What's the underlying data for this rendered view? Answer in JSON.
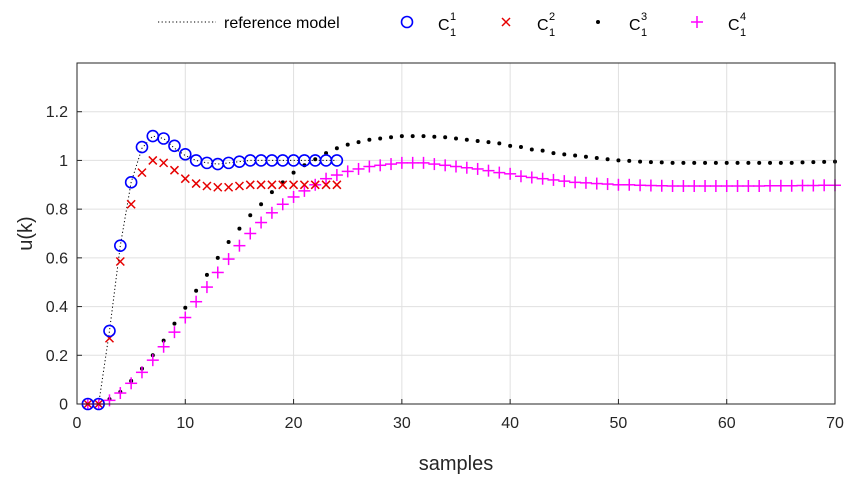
{
  "chart_data": {
    "type": "scatter",
    "xlabel": "samples",
    "ylabel": "u(k)",
    "xlim": [
      0,
      70
    ],
    "ylim": [
      0,
      1.4
    ],
    "xticks": [
      0,
      10,
      20,
      30,
      40,
      50,
      60,
      70
    ],
    "yticks": [
      0,
      0.2,
      0.4,
      0.6,
      0.8,
      1,
      1.2
    ],
    "ytick_labels": [
      "0",
      "0.2",
      "0.4",
      "0.6",
      "0.8",
      "1",
      "1.2"
    ],
    "grid": true,
    "legend_position": "top-outside",
    "legend": [
      {
        "key": "ref",
        "label": "reference model",
        "marker": "dotted-line",
        "color": "#000000"
      },
      {
        "key": "c1",
        "base": "C",
        "sup": "1",
        "sub": "1",
        "marker": "circle",
        "color": "#0000ff"
      },
      {
        "key": "c2",
        "base": "C",
        "sup": "2",
        "sub": "1",
        "marker": "x",
        "color": "#e60000"
      },
      {
        "key": "c3",
        "base": "C",
        "sup": "3",
        "sub": "1",
        "marker": "dot",
        "color": "#000000"
      },
      {
        "key": "c4",
        "base": "C",
        "sup": "4",
        "sub": "1",
        "marker": "plus",
        "color": "#ff00ff"
      }
    ],
    "series": [
      {
        "key": "ref",
        "x": [
          1,
          2,
          3,
          4,
          5,
          6,
          7,
          8,
          9,
          10,
          11,
          12,
          13,
          14,
          15,
          16,
          17,
          18,
          19,
          20,
          21,
          22,
          23,
          24
        ],
        "y": [
          0,
          0,
          0.3,
          0.65,
          0.91,
          1.05,
          1.1,
          1.09,
          1.05,
          1.02,
          1.0,
          0.99,
          0.985,
          0.99,
          0.995,
          1.0,
          1.0,
          1.0,
          1.0,
          1.0,
          1.0,
          1.0,
          1.0,
          1.0
        ]
      },
      {
        "key": "c1",
        "x": [
          1,
          2,
          3,
          4,
          5,
          6,
          7,
          8,
          9,
          10,
          11,
          12,
          13,
          14,
          15,
          16,
          17,
          18,
          19,
          20,
          21,
          22,
          23,
          24
        ],
        "y": [
          0,
          0,
          0.3,
          0.65,
          0.91,
          1.055,
          1.1,
          1.09,
          1.06,
          1.025,
          1.0,
          0.99,
          0.985,
          0.99,
          0.995,
          1.0,
          1.0,
          1.0,
          1.0,
          1.0,
          1.0,
          1.0,
          1.0,
          1.0
        ]
      },
      {
        "key": "c2",
        "x": [
          1,
          2,
          3,
          4,
          5,
          6,
          7,
          8,
          9,
          10,
          11,
          12,
          13,
          14,
          15,
          16,
          17,
          18,
          19,
          20,
          21,
          22,
          23,
          24
        ],
        "y": [
          0,
          0,
          0.27,
          0.585,
          0.82,
          0.95,
          1.0,
          0.99,
          0.96,
          0.925,
          0.905,
          0.895,
          0.89,
          0.89,
          0.895,
          0.9,
          0.9,
          0.9,
          0.9,
          0.9,
          0.9,
          0.9,
          0.9,
          0.9
        ]
      },
      {
        "key": "c3",
        "x": [
          1,
          2,
          3,
          4,
          5,
          6,
          7,
          8,
          9,
          10,
          11,
          12,
          13,
          14,
          15,
          16,
          17,
          18,
          19,
          20,
          21,
          22,
          23,
          24,
          25,
          26,
          27,
          28,
          29,
          30,
          31,
          32,
          33,
          34,
          35,
          36,
          37,
          38,
          39,
          40,
          41,
          42,
          43,
          44,
          45,
          46,
          47,
          48,
          49,
          50,
          51,
          52,
          53,
          54,
          55,
          56,
          57,
          58,
          59,
          60,
          61,
          62,
          63,
          64,
          65,
          66,
          67,
          68,
          69,
          70
        ],
        "y": [
          0,
          0,
          0.02,
          0.05,
          0.095,
          0.145,
          0.2,
          0.26,
          0.33,
          0.395,
          0.465,
          0.53,
          0.6,
          0.665,
          0.72,
          0.775,
          0.82,
          0.87,
          0.91,
          0.95,
          0.98,
          1.005,
          1.03,
          1.05,
          1.065,
          1.075,
          1.085,
          1.09,
          1.095,
          1.1,
          1.1,
          1.1,
          1.097,
          1.095,
          1.09,
          1.085,
          1.08,
          1.075,
          1.07,
          1.06,
          1.055,
          1.045,
          1.04,
          1.03,
          1.025,
          1.02,
          1.015,
          1.01,
          1.005,
          1.0,
          0.998,
          0.995,
          0.993,
          0.992,
          0.99,
          0.99,
          0.99,
          0.99,
          0.99,
          0.99,
          0.99,
          0.99,
          0.99,
          0.99,
          0.99,
          0.99,
          0.992,
          0.993,
          0.994,
          0.995
        ]
      },
      {
        "key": "c4",
        "x": [
          1,
          2,
          3,
          4,
          5,
          6,
          7,
          8,
          9,
          10,
          11,
          12,
          13,
          14,
          15,
          16,
          17,
          18,
          19,
          20,
          21,
          22,
          23,
          24,
          25,
          26,
          27,
          28,
          29,
          30,
          31,
          32,
          33,
          34,
          35,
          36,
          37,
          38,
          39,
          40,
          41,
          42,
          43,
          44,
          45,
          46,
          47,
          48,
          49,
          50,
          51,
          52,
          53,
          54,
          55,
          56,
          57,
          58,
          59,
          60,
          61,
          62,
          63,
          64,
          65,
          66,
          67,
          68,
          69,
          70
        ],
        "y": [
          0,
          0,
          0.015,
          0.045,
          0.085,
          0.13,
          0.18,
          0.235,
          0.295,
          0.355,
          0.42,
          0.48,
          0.54,
          0.595,
          0.65,
          0.7,
          0.745,
          0.785,
          0.82,
          0.85,
          0.875,
          0.9,
          0.925,
          0.94,
          0.955,
          0.965,
          0.975,
          0.98,
          0.985,
          0.99,
          0.99,
          0.99,
          0.985,
          0.98,
          0.975,
          0.97,
          0.965,
          0.958,
          0.95,
          0.945,
          0.935,
          0.93,
          0.925,
          0.92,
          0.915,
          0.91,
          0.908,
          0.905,
          0.903,
          0.9,
          0.9,
          0.898,
          0.897,
          0.896,
          0.895,
          0.895,
          0.895,
          0.895,
          0.895,
          0.895,
          0.895,
          0.895,
          0.895,
          0.896,
          0.896,
          0.896,
          0.897,
          0.897,
          0.898,
          0.898
        ]
      }
    ]
  }
}
